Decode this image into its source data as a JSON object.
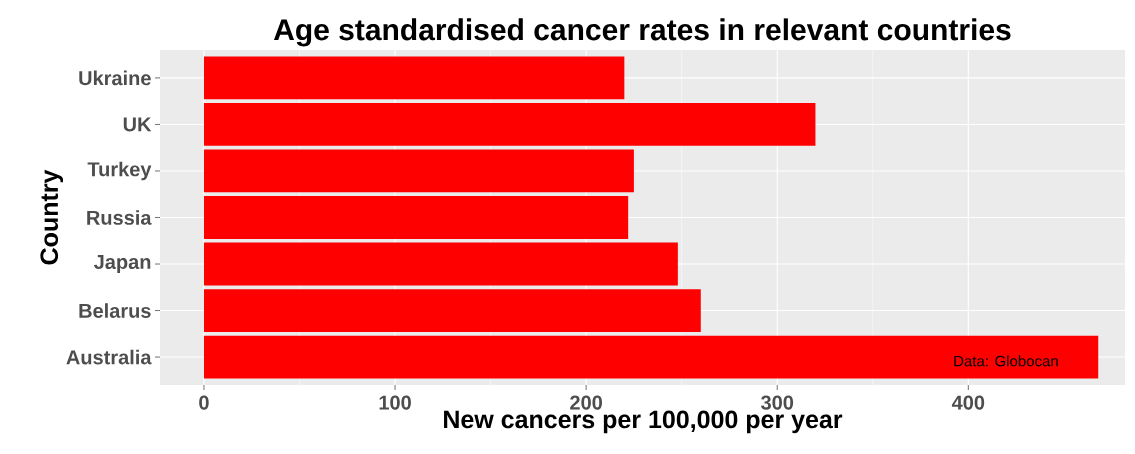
{
  "chart_data": {
    "type": "bar",
    "orientation": "horizontal",
    "title": "Age standardised cancer rates in relevant countries",
    "xlabel": "New cancers per 100,000 per year",
    "ylabel": "Country",
    "categories": [
      "Ukraine",
      "UK",
      "Turkey",
      "Russia",
      "Japan",
      "Belarus",
      "Australia"
    ],
    "values": [
      220,
      320,
      225,
      222,
      248,
      260,
      468
    ],
    "color": "#ff0000",
    "xlim": [
      -23,
      482
    ],
    "xticks": [
      0,
      100,
      200,
      300,
      400
    ],
    "grid": true,
    "annotations": [
      "Data: Globocan"
    ]
  }
}
